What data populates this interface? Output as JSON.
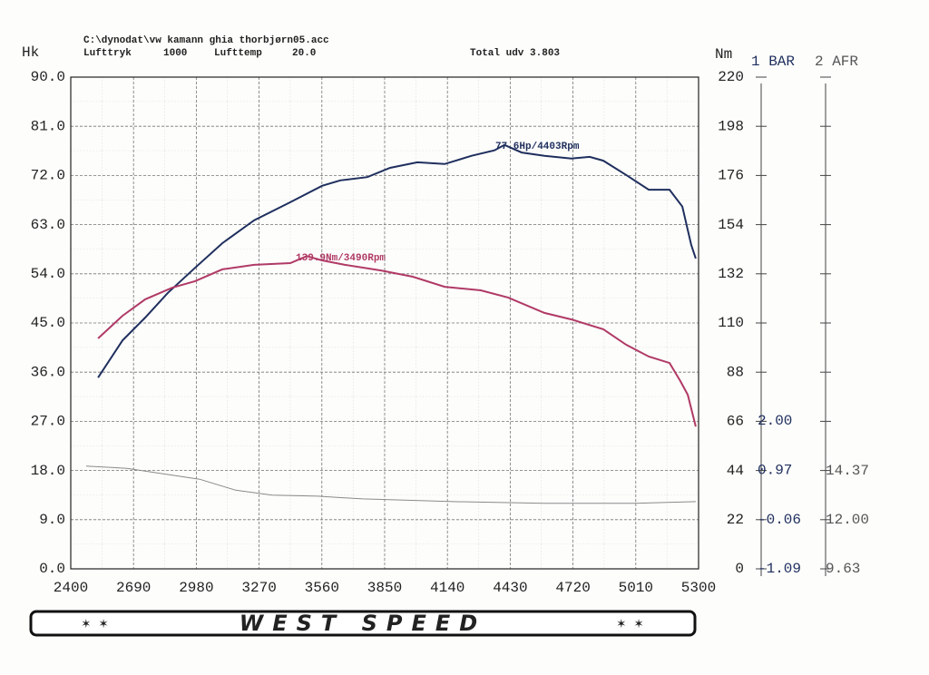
{
  "chart_data": {
    "type": "line",
    "file": "C:\\dynodat\\vw kamann ghia thorbjørn05.acc",
    "info": [
      "Lufttryk",
      "1000",
      "Lufttemp",
      "20.0"
    ],
    "total": "Total udv 3.803",
    "ylabel": "Hk",
    "y2label": "Nm",
    "xlim": [
      2400,
      5300
    ],
    "xticks": [
      2400,
      2690,
      2980,
      3270,
      3560,
      3850,
      4140,
      4430,
      4720,
      5010,
      5300
    ],
    "ylim": [
      0,
      90
    ],
    "yticks": [
      {
        "value": 0,
        "label": "0.0"
      },
      {
        "value": 9,
        "label": "9.0"
      },
      {
        "value": 18,
        "label": "18.0"
      },
      {
        "value": 27,
        "label": "27.0"
      },
      {
        "value": 36,
        "label": "36.0"
      },
      {
        "value": 45,
        "label": "45.0"
      },
      {
        "value": 54,
        "label": "54.0"
      },
      {
        "value": 63,
        "label": "63.0"
      },
      {
        "value": 72,
        "label": "72.0"
      },
      {
        "value": 81,
        "label": "81.0"
      },
      {
        "value": 90,
        "label": "90.0"
      }
    ],
    "y2lim": [
      0,
      220
    ],
    "y2ticks": [
      0,
      22,
      44,
      66,
      88,
      110,
      132,
      154,
      176,
      198,
      220
    ],
    "bar_axis": {
      "label": "1 BAR",
      "lim": [
        -1.09,
        9.18
      ],
      "ticks": [
        -1.09,
        -0.06,
        0.97,
        {
          "value": 2,
          "label": "2.00"
        }
      ]
    },
    "afr_axis": {
      "label": "2 AFR",
      "lim": [
        9.63,
        33.33
      ],
      "ticks": [
        9.63,
        {
          "value": 12,
          "label": "12.00"
        },
        14.37
      ]
    },
    "grid": true,
    "series": [
      {
        "color": "#1f2f5e",
        "x": [
          2526,
          2639,
          2744,
          2848,
          2974,
          3100,
          3247,
          3414,
          3561,
          3645,
          3770,
          3875,
          4001,
          4127,
          4252,
          4357,
          4403,
          4483,
          4588,
          4713,
          4797,
          4860,
          4965,
          5070,
          5166,
          5225,
          5266,
          5287
        ],
        "values": [
          35.0,
          41.8,
          46.0,
          50.5,
          55.1,
          59.6,
          63.8,
          67.1,
          70.1,
          71.1,
          71.7,
          73.4,
          74.4,
          74.1,
          75.6,
          76.6,
          77.6,
          76.2,
          75.6,
          75.1,
          75.4,
          74.7,
          72.1,
          69.4,
          69.4,
          66.3,
          59.3,
          56.8
        ]
      },
      {
        "color": "#b03a66",
        "axis": "y2",
        "x": [
          2526,
          2639,
          2744,
          2869,
          2974,
          3100,
          3247,
          3414,
          3490,
          3561,
          3666,
          3833,
          3980,
          4127,
          4294,
          4420,
          4588,
          4713,
          4860,
          4965,
          5070,
          5166,
          5216,
          5250,
          5287
        ],
        "values": [
          103.1,
          113.2,
          120.6,
          125.8,
          128.7,
          134.0,
          136.0,
          136.8,
          139.9,
          138.0,
          136.0,
          133.5,
          130.7,
          126.2,
          124.6,
          121.4,
          114.5,
          111.6,
          107.2,
          100.3,
          95.0,
          92.1,
          84.0,
          77.9,
          63.7
        ]
      },
      {
        "color": "#8a8a8a",
        "x": [
          2471,
          2660,
          2827,
          2995,
          3162,
          3330,
          3540,
          3749,
          4168,
          4587,
          5006,
          5287
        ],
        "values": [
          18.8,
          18.4,
          17.4,
          16.4,
          14.4,
          13.5,
          13.3,
          12.8,
          12.3,
          12.0,
          12.0,
          12.3
        ]
      }
    ],
    "annotations": [
      "77.6Hp/4403Rpm",
      "139.9Nm/3490Rpm"
    ],
    "logo": "WEST SPEED"
  }
}
